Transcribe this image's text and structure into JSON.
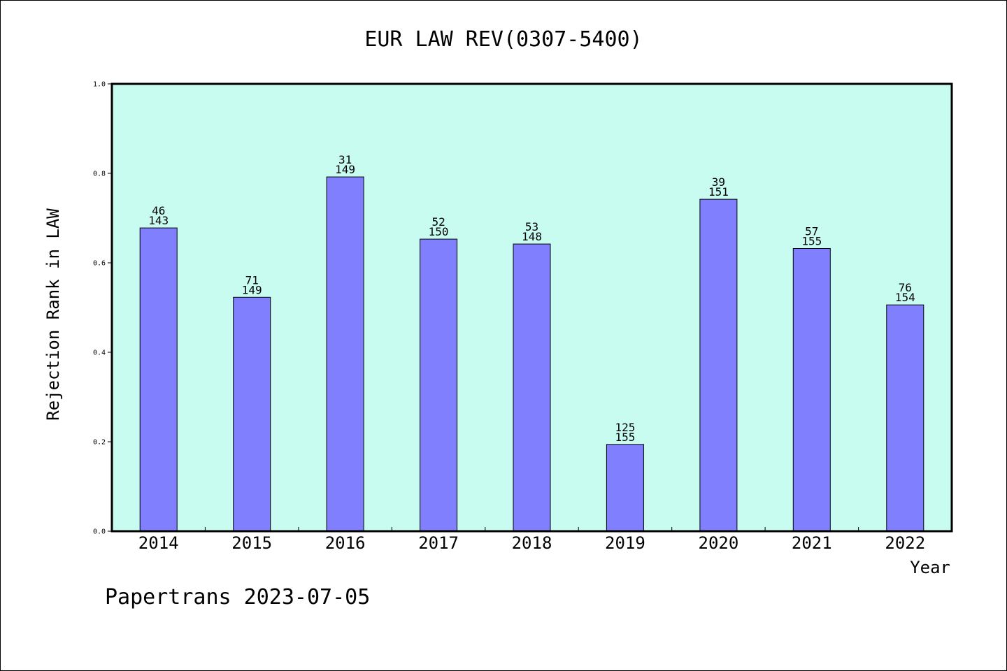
{
  "colors": {
    "plot_background": "#c8fcf0",
    "bar_fill": "#8080ff",
    "bar_stroke": "#000000",
    "axis": "#000000"
  },
  "footer": {
    "text": "Papertrans 2023-07-05"
  },
  "chart_data": {
    "type": "bar",
    "title": "EUR LAW REV(0307-5400)",
    "xlabel": "Year",
    "ylabel": "Rejection Rank in LAW",
    "ylim": [
      0,
      1.0
    ],
    "yticks": [
      "0.0",
      "0.2",
      "0.4",
      "0.6",
      "0.8",
      "1.0"
    ],
    "grid": false,
    "categories": [
      "2014",
      "2015",
      "2016",
      "2017",
      "2018",
      "2019",
      "2020",
      "2021",
      "2022"
    ],
    "values": [
      0.678,
      0.523,
      0.792,
      0.653,
      0.642,
      0.194,
      0.742,
      0.632,
      0.506
    ],
    "labels_top": [
      "46",
      "71",
      "31",
      "52",
      "53",
      "125",
      "39",
      "57",
      "76"
    ],
    "labels_bottom": [
      "143",
      "149",
      "149",
      "150",
      "148",
      "155",
      "151",
      "155",
      "154"
    ]
  }
}
